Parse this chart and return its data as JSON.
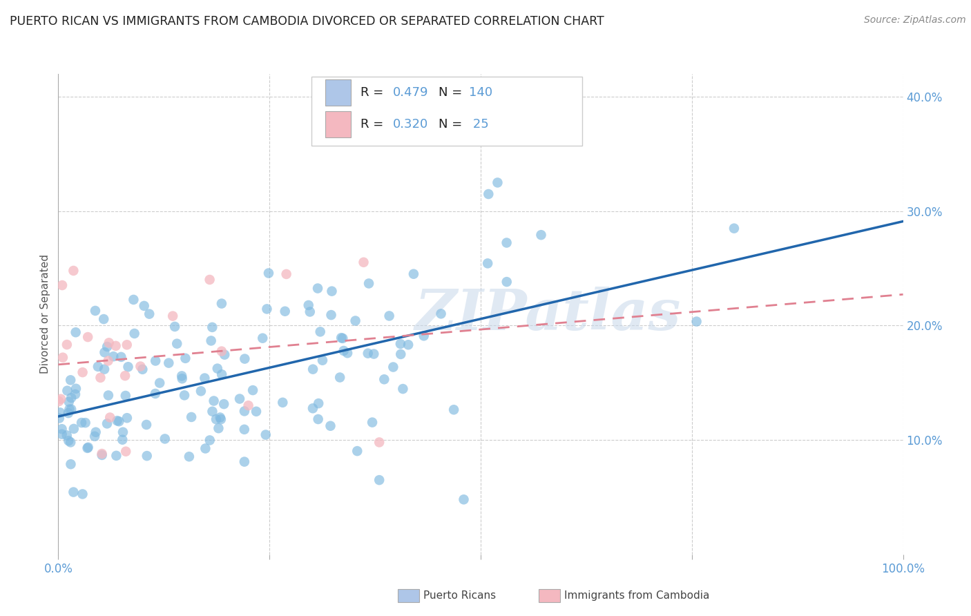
{
  "title": "PUERTO RICAN VS IMMIGRANTS FROM CAMBODIA DIVORCED OR SEPARATED CORRELATION CHART",
  "source": "Source: ZipAtlas.com",
  "ylabel": "Divorced or Separated",
  "watermark": "ZIPatlas",
  "legend_color_pr": "#aec6e8",
  "legend_color_cam": "#f4b8c0",
  "scatter_color_pr": "#7fb9e0",
  "scatter_color_cam": "#f4b8c0",
  "line_color_pr": "#2166ac",
  "line_color_cam": "#e08090",
  "background_color": "#ffffff",
  "grid_color": "#cccccc",
  "axis_tick_color": "#5b9bd5",
  "xlim": [
    0.0,
    1.0
  ],
  "ylim": [
    0.0,
    0.42
  ],
  "N_pr": 140,
  "N_cam": 25,
  "R_pr": 0.479,
  "R_cam": 0.32,
  "label_pr": "Puerto Ricans",
  "label_cam": "Immigrants from Cambodia"
}
